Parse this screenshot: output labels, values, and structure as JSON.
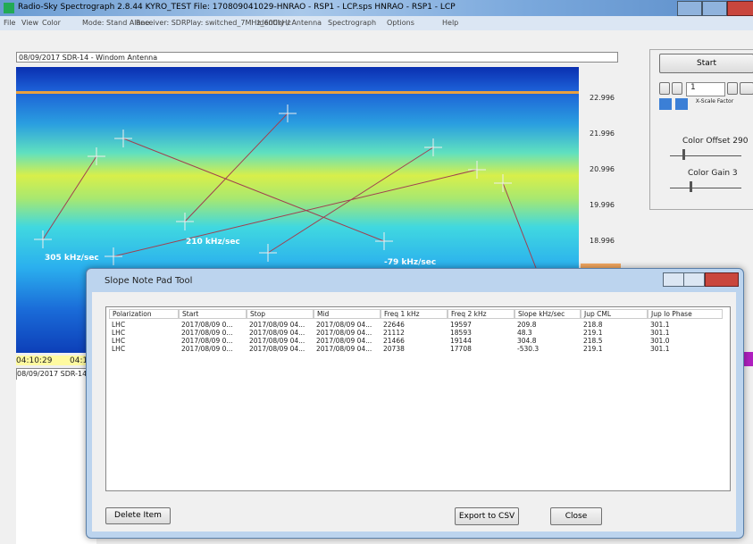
{
  "window": {
    "title": "Radio-Sky Spectrograph  2.8.44  KYRO_TEST    File: 170809041029-HNRAO - RSP1 - LCP.sps   HNRAO - RSP1 - LCP",
    "menu": [
      "File",
      "View",
      "Color",
      "Mode: Stand Alone",
      "Receiver: SDRPlay: switched_7MHz_600kHz",
      "Identity / Antenna",
      "Spectrograph",
      "Options",
      "Help"
    ]
  },
  "spectrogram": {
    "header": "08/09/2017 SDR-14 - Windom Antenna",
    "freq_labels": [
      "22.996",
      "21.996",
      "20.996",
      "19.996",
      "18.996"
    ],
    "annotations": [
      "305 kHz/sec",
      "210 kHz/sec",
      "-79 kHz/sec"
    ],
    "times": [
      "04:10:29",
      "04:1"
    ],
    "lower_header": "08/09/2017 SDR-14"
  },
  "controls": {
    "start": "Start",
    "page": "1",
    "xscale": "X-Scale Factor",
    "color_offset": "Color Offset 290",
    "color_gain": "Color Gain 3"
  },
  "dialog": {
    "title": "Slope Note Pad Tool",
    "table": {
      "columns": [
        "Polarization",
        "Start",
        "Stop",
        "Mid",
        "Freq 1 kHz",
        "Freq 2 kHz",
        "Slope  kHz/sec",
        "Jup CML",
        "Jup Io Phase"
      ],
      "rows": [
        [
          "LHC",
          "2017/08/09 0...",
          "2017/08/09 04...",
          "2017/08/09 04...",
          "22646",
          "19597",
          "209.8",
          "218.8",
          "301.1"
        ],
        [
          "LHC",
          "2017/08/09 0...",
          "2017/08/09 04...",
          "2017/08/09 04...",
          "21112",
          "18593",
          "48.3",
          "219.1",
          "301.1"
        ],
        [
          "LHC",
          "2017/08/09 0...",
          "2017/08/09 04...",
          "2017/08/09 04...",
          "21466",
          "19144",
          "304.8",
          "218.5",
          "301.0"
        ],
        [
          "LHC",
          "2017/08/09 0...",
          "2017/08/09 04...",
          "2017/08/09 04...",
          "20738",
          "17708",
          "-530.3",
          "219.1",
          "301.1"
        ]
      ]
    },
    "buttons": [
      "Delete Item",
      "Export to CSV",
      "Close"
    ]
  }
}
